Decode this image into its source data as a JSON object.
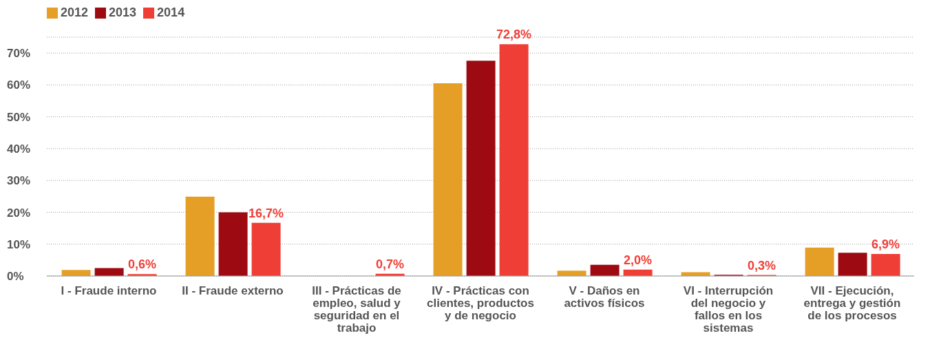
{
  "chart_data": {
    "type": "bar",
    "categories": [
      "I - Fraude interno",
      "II - Fraude externo",
      "III - Prácticas de empleo, salud y seguridad en el trabajo",
      "IV - Prácticas con clientes, productos y de negocio",
      "V - Daños en activos físicos",
      "VI - Interrupción del negocio y fallos en los sistemas",
      "VII - Ejecución, entrega y gestión de los procesos"
    ],
    "series": [
      {
        "name": "2012",
        "color": "#e59f27",
        "values": [
          1.9,
          24.9,
          0,
          60.5,
          1.7,
          1.2,
          8.9
        ]
      },
      {
        "name": "2013",
        "color": "#9e0a12",
        "values": [
          2.5,
          20.0,
          0,
          67.6,
          3.5,
          0.4,
          7.3
        ]
      },
      {
        "name": "2014",
        "color": "#ef3e36",
        "values": [
          0.6,
          16.7,
          0.7,
          72.8,
          2.0,
          0.3,
          6.9
        ],
        "value_labels": [
          "0,6%",
          "16,7%",
          "0,7%",
          "72,8%",
          "2,0%",
          "0,3%",
          "6,9%"
        ]
      }
    ],
    "ylim": [
      0,
      75
    ],
    "yticks": [
      {
        "value": 0,
        "label": "0%"
      },
      {
        "value": 10,
        "label": "10%"
      },
      {
        "value": 20,
        "label": "20%"
      },
      {
        "value": 30,
        "label": "30%"
      },
      {
        "value": 40,
        "label": "40%"
      },
      {
        "value": 50,
        "label": "50%"
      },
      {
        "value": 60,
        "label": "60%"
      },
      {
        "value": 70,
        "label": "70%"
      }
    ],
    "grid": "y",
    "legend": "top left"
  }
}
